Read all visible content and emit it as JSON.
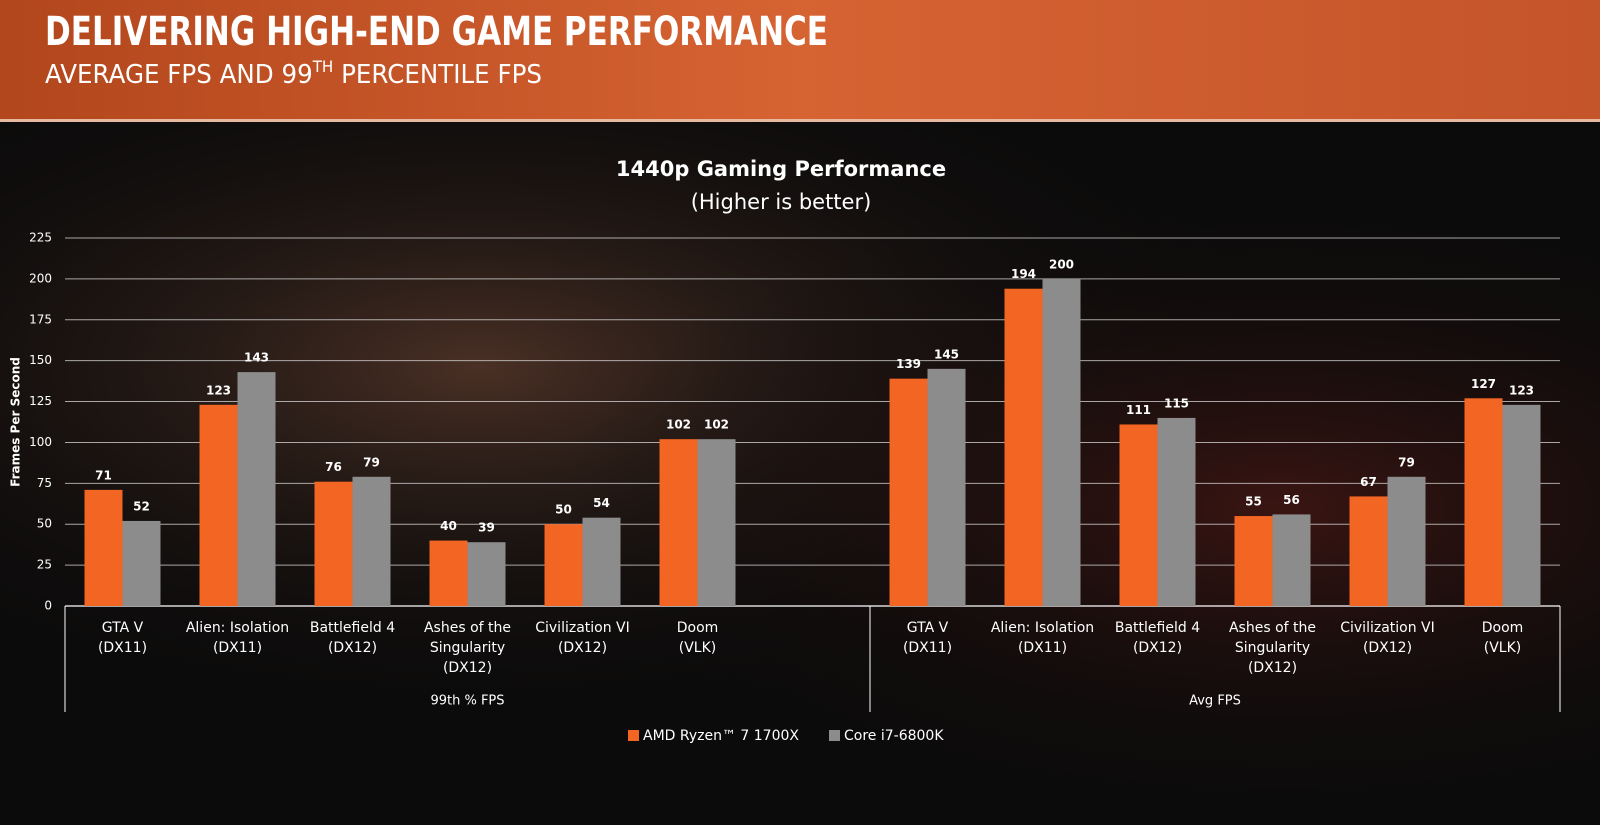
{
  "header": {
    "title": "DELIVERING HIGH-END GAME PERFORMANCE",
    "subtitle": {
      "before": "AVERAGE FPS AND 99",
      "sup": "TH",
      "after": " PERCENTILE FPS"
    }
  },
  "chart_data": {
    "type": "bar",
    "title": "1440p Gaming Performance",
    "subtitle": "(Higher is better)",
    "y_label": "Frames Per Second",
    "groups": [
      "99th % FPS",
      "Avg FPS"
    ],
    "categories": [
      [
        "GTA V\n(DX11)",
        "Alien: Isolation\n(DX11)",
        "Battlefield 4\n(DX12)",
        "Ashes of the\nSingularity\n(DX12)",
        "Civilization VI\n(DX12)",
        "Doom\n(VLK)",
        null
      ],
      [
        "GTA V\n(DX11)",
        "Alien: Isolation\n(DX11)",
        "Battlefield 4\n(DX12)",
        "Ashes of the\nSingularity\n(DX12)",
        "Civilization VI\n(DX12)",
        "Doom\n(VLK)"
      ]
    ],
    "series": [
      {
        "name": "AMD Ryzen™ 7 1700X",
        "color": "#f26522",
        "values": [
          [
            71,
            123,
            76,
            40,
            50,
            102,
            null
          ],
          [
            139,
            194,
            111,
            55,
            67,
            127
          ]
        ]
      },
      {
        "name": "Core i7-6800K",
        "color": "#8c8c8c",
        "values": [
          [
            52,
            143,
            79,
            39,
            54,
            102,
            null
          ],
          [
            145,
            200,
            115,
            56,
            79,
            123
          ]
        ]
      }
    ],
    "ylim": [
      0,
      225
    ],
    "yticks": [
      0,
      25,
      50,
      75,
      100,
      125,
      150,
      175,
      200,
      225
    ],
    "grid": true,
    "legend": "bottom"
  }
}
